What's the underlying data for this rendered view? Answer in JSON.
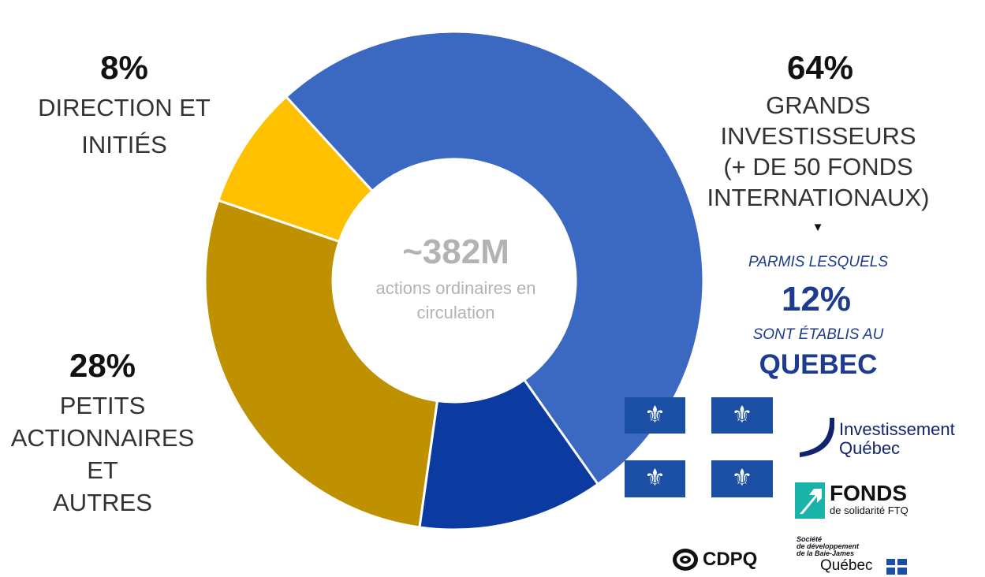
{
  "chart_data": {
    "type": "donut",
    "center": {
      "value": "~382M",
      "label": "actions ordinaires en circulation"
    },
    "slices": [
      {
        "value": 64,
        "label": "GRANDS INVESTISSEURS (+ DE 50 FONDS INTERNATIONAUX)",
        "color": "#3b68c1"
      },
      {
        "value": 28,
        "label": "PETITS ACTIONNAIRES ET AUTRES",
        "color": "#bf9000"
      },
      {
        "value": 8,
        "label": "DIRECTION ET INITIÉS",
        "color": "#ffc000"
      }
    ],
    "sub_slice": {
      "parent": "GRANDS INVESTISSEURS",
      "value": 12,
      "color": "#0b3aa0"
    }
  },
  "labels": {
    "direction": {
      "pct": "8%",
      "line1": "DIRECTION ET",
      "line2": "INITIÉS"
    },
    "grands": {
      "pct": "64%",
      "line1": "GRANDS",
      "line2": "INVESTISSEURS",
      "line3": "(+ DE 50 FONDS",
      "line4": "INTERNATIONAUX)"
    },
    "petits": {
      "pct": "28%",
      "line1": "PETITS",
      "line2": "ACTIONNAIRES",
      "line3": "ET",
      "line4": "AUTRES"
    }
  },
  "quebec_note": {
    "arrow": "▼",
    "parmis": "PARMIS LESQUELS",
    "pct": "12%",
    "sont": "SONT ÉTABLIS AU",
    "place": "QUEBEC"
  },
  "flag": {
    "symbol": "⚜",
    "color": "#1b4fa4"
  },
  "logos": {
    "iq_line1": "Investissement",
    "iq_line2": "Québec",
    "ftq_title": "FONDS",
    "ftq_sub": "de solidarité FTQ",
    "cdpq": "CDPQ",
    "sdbj_line1": "Société",
    "sdbj_line2": "de développement",
    "sdbj_line3": "de la Baie-James",
    "sdbj_line4": "Québec"
  }
}
